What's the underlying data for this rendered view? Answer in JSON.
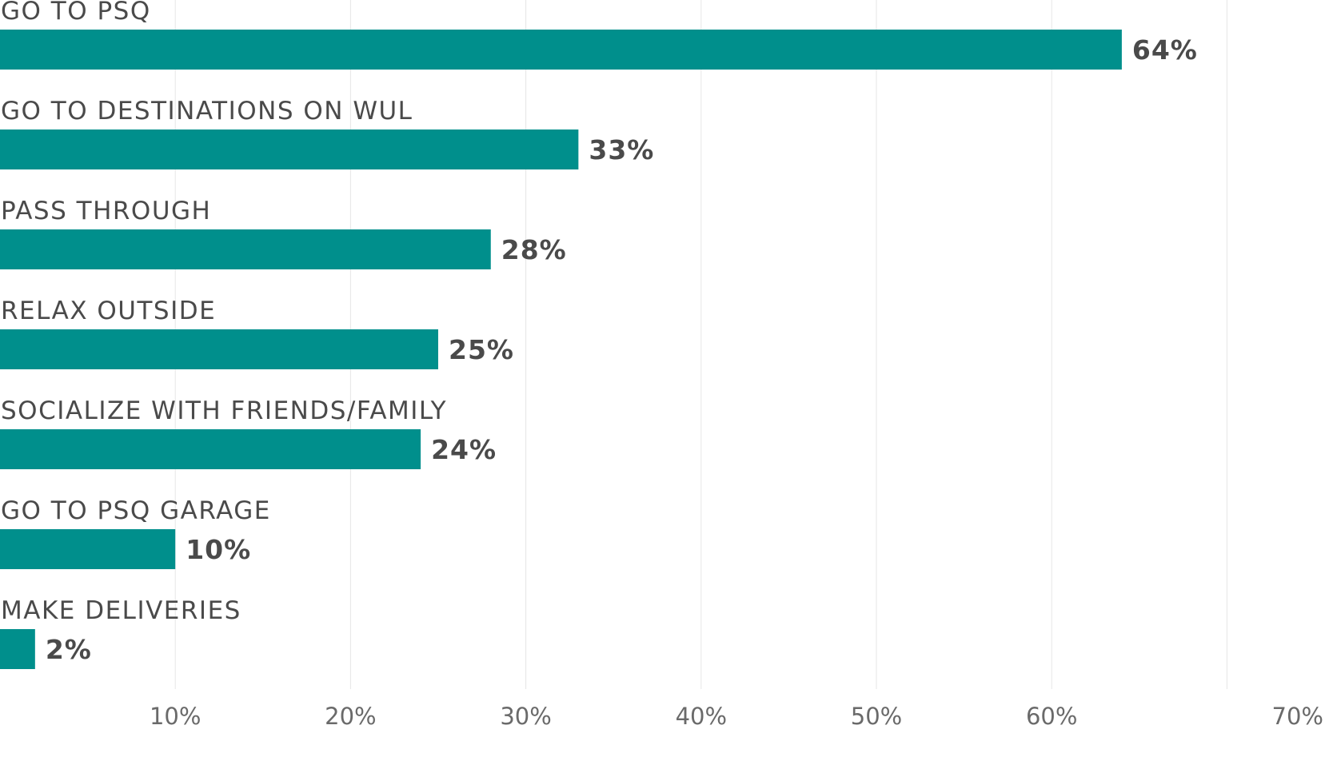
{
  "chart_data": {
    "type": "bar",
    "orientation": "horizontal",
    "categories": [
      "GO TO PSQ",
      "GO TO DESTINATIONS ON WUL",
      "PASS THROUGH",
      "RELAX OUTSIDE",
      "SOCIALIZE WITH FRIENDS/FAMILY",
      "GO TO PSQ GARAGE",
      "MAKE DELIVERIES"
    ],
    "values": [
      64,
      33,
      28,
      25,
      24,
      10,
      2
    ],
    "value_labels": [
      "64%",
      "33%",
      "28%",
      "25%",
      "24%",
      "10%",
      "2%"
    ],
    "xlim": [
      0,
      70
    ],
    "x_ticks": [
      10,
      20,
      30,
      40,
      50,
      60,
      70
    ],
    "x_tick_labels": [
      "10%",
      "20%",
      "30%",
      "40%",
      "50%",
      "60%",
      "70%"
    ],
    "grid": true,
    "bar_color": "#008f8c",
    "title": "",
    "xlabel": "",
    "ylabel": ""
  }
}
